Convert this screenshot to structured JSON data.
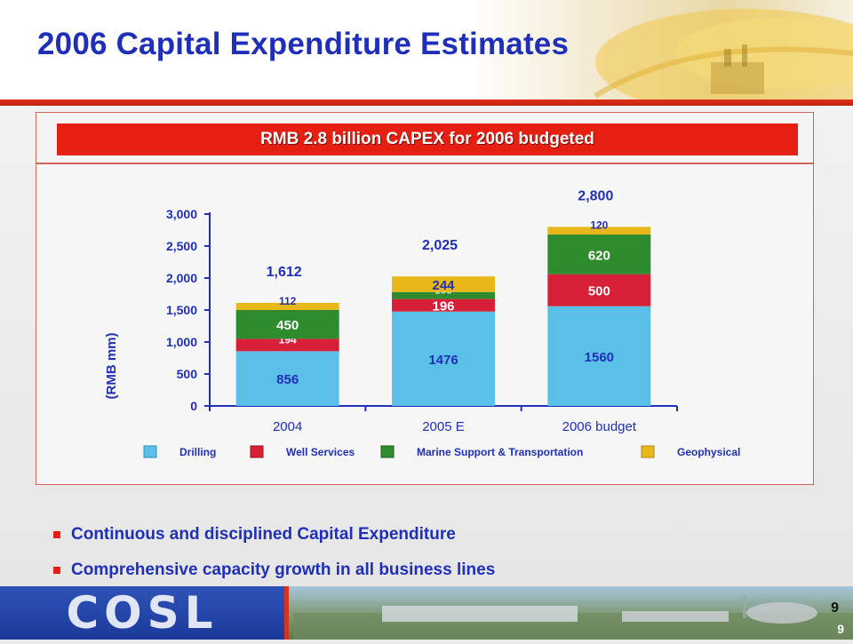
{
  "slide": {
    "title": "2006 Capital Expenditure Estimates",
    "banner": "RMB 2.8 billion CAPEX for 2006 budgeted",
    "bullets": [
      "Continuous and disciplined Capital Expenditure",
      "Comprehensive capacity growth in all business lines"
    ],
    "logo": "COSL",
    "page_number": "9",
    "page_number_repeat": "9"
  },
  "colors": {
    "title": "#1f2fb8",
    "banner": "#e51f12",
    "drilling": "#5bc0e8",
    "well_services": "#d81f38",
    "marine_support": "#2e8b2e",
    "geophysical": "#e8b81a"
  },
  "chart_data": {
    "type": "bar",
    "stacked": true,
    "categories": [
      "2004",
      "2005 E",
      "2006 budget"
    ],
    "series": [
      {
        "name": "Drilling",
        "values": [
          856,
          1476,
          1560
        ],
        "labels": [
          "856",
          "1476",
          "1560"
        ]
      },
      {
        "name": "Well Services",
        "values": [
          194,
          196,
          500
        ],
        "labels": [
          "194",
          "196",
          "500"
        ]
      },
      {
        "name": "Marine Support & Transportation",
        "values": [
          450,
          109,
          620
        ],
        "labels": [
          "450",
          "109",
          "620"
        ]
      },
      {
        "name": "Geophysical",
        "values": [
          112,
          244,
          120
        ],
        "labels": [
          "112",
          "244",
          "120"
        ]
      }
    ],
    "totals": [
      "1,612",
      "2,025",
      "2,800"
    ],
    "ylabel": "(RMB mm)",
    "ylim": [
      0,
      3000
    ],
    "yticks": [
      0,
      500,
      1000,
      1500,
      2000,
      2500,
      3000
    ],
    "ytick_labels": [
      "0",
      "500",
      "1,000",
      "1,500",
      "2,000",
      "2,500",
      "3,000"
    ],
    "legend_position": "bottom",
    "grid": false
  }
}
